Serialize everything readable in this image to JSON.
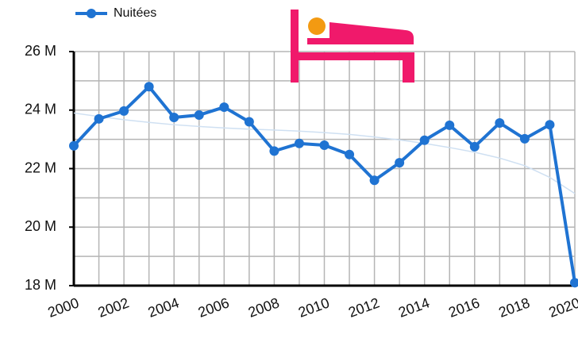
{
  "chart_data": {
    "type": "line",
    "x": [
      2000,
      2001,
      2002,
      2003,
      2004,
      2005,
      2006,
      2007,
      2008,
      2009,
      2010,
      2011,
      2012,
      2013,
      2014,
      2015,
      2016,
      2017,
      2018,
      2019,
      2020
    ],
    "series": [
      {
        "name": "Nuitées",
        "color": "#1f73d2",
        "values": [
          22.78,
          23.7,
          23.97,
          24.8,
          23.75,
          23.83,
          24.1,
          23.6,
          22.6,
          22.86,
          22.8,
          22.48,
          21.6,
          22.2,
          22.97,
          23.48,
          22.75,
          23.56,
          23.02,
          23.5,
          18.1
        ]
      }
    ],
    "trendline": {
      "color": "#cfe0f2",
      "values": [
        23.9,
        23.78,
        23.67,
        23.58,
        23.5,
        23.44,
        23.39,
        23.35,
        23.32,
        23.28,
        23.23,
        23.17,
        23.08,
        22.98,
        22.86,
        22.72,
        22.56,
        22.36,
        22.1,
        21.7,
        21.15
      ]
    },
    "xlim": [
      2000,
      2020
    ],
    "xticks": [
      2000,
      2002,
      2004,
      2006,
      2008,
      2010,
      2012,
      2014,
      2016,
      2018,
      2020
    ],
    "xgrid": [
      2000,
      2001,
      2002,
      2003,
      2004,
      2005,
      2006,
      2007,
      2008,
      2009,
      2010,
      2011,
      2012,
      2013,
      2014,
      2015,
      2016,
      2017,
      2018,
      2019,
      2020
    ],
    "ylim": [
      18,
      26
    ],
    "yticks": [
      {
        "value": 18,
        "label": "18 M"
      },
      {
        "value": 20,
        "label": "20 M"
      },
      {
        "value": 22,
        "label": "22 M"
      },
      {
        "value": 24,
        "label": "24 M"
      },
      {
        "value": 26,
        "label": "26 M"
      }
    ],
    "ygrid": [
      18,
      19,
      20,
      21,
      22,
      23,
      24,
      25,
      26
    ],
    "grid": true,
    "legend": "top-left"
  }
}
